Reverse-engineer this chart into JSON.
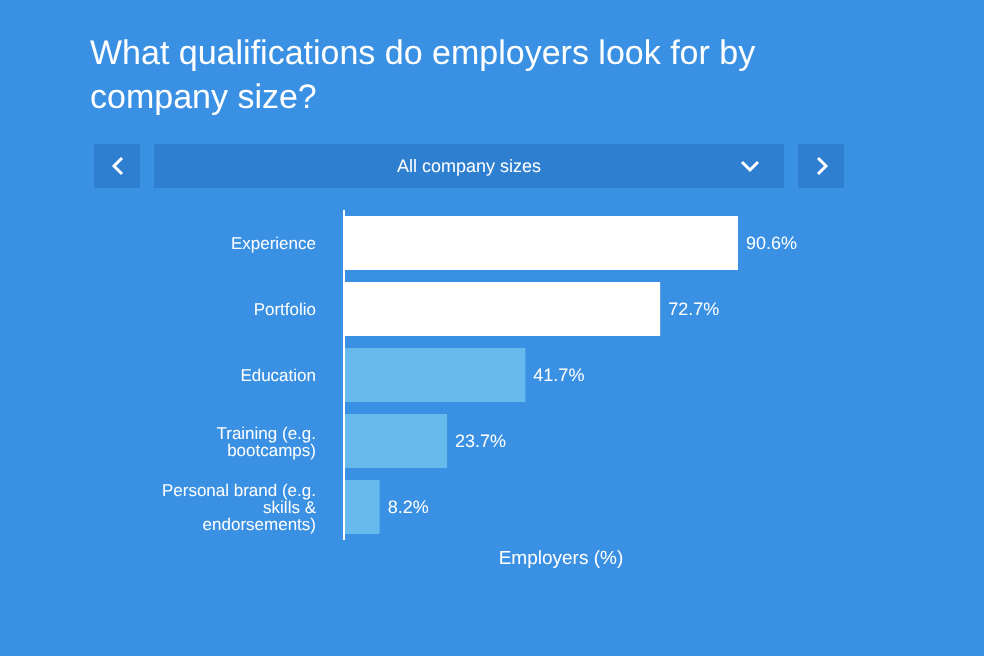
{
  "chart_data": {
    "type": "bar",
    "orientation": "horizontal",
    "title": "What qualifications do employers look for by company size?",
    "xlabel": "Employers (%)",
    "annotations": [
      "All company sizes"
    ],
    "categories": [
      "Experience",
      "Portfolio",
      "Education",
      "Training (e.g. bootcamps)",
      "Personal brand (e.g. skills & endorsements)"
    ],
    "values": [
      90.6,
      72.7,
      41.7,
      23.7,
      8.2
    ],
    "value_labels": [
      "90.6%",
      "72.7%",
      "41.7%",
      "23.7%",
      "8.2%"
    ],
    "colors": [
      "#ffffff",
      "#ffffff",
      "#66bbec",
      "#66bbec",
      "#66bbec"
    ],
    "tick_labels": "y"
  }
}
